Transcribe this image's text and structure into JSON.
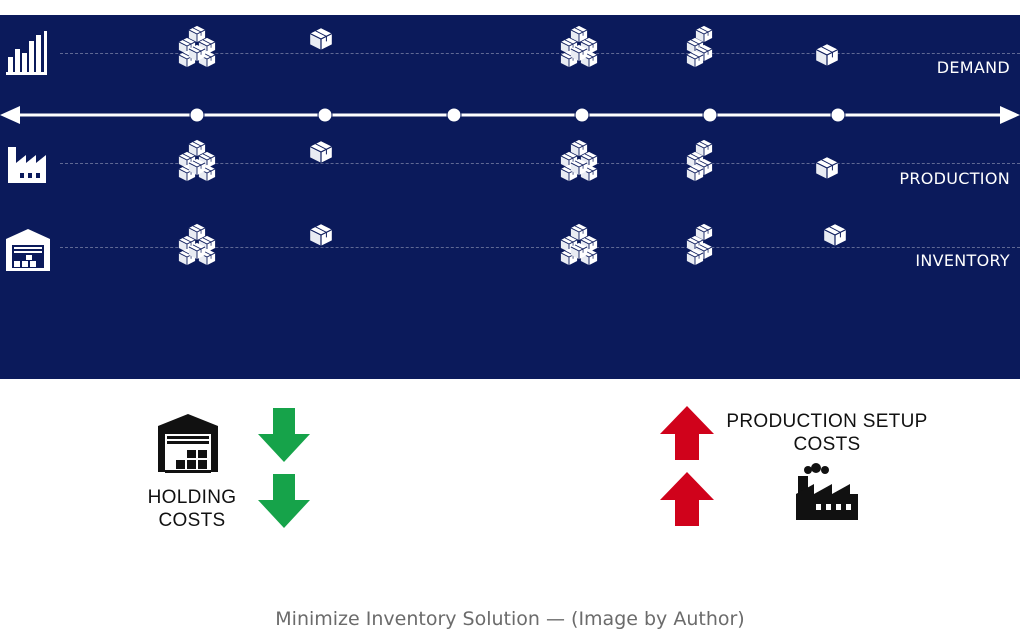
{
  "rows": {
    "demand_label": "DEMAND",
    "production_label": "PRODUCTION",
    "inventory_label": "INVENTORY"
  },
  "bottom": {
    "holding_costs_label": "HOLDING COSTS",
    "production_setup_costs_label": "PRODUCTION SETUP COSTS"
  },
  "caption": "Minimize Inventory Solution — (Image by Author)",
  "colors": {
    "panel": "#0b1a5b",
    "decrease_arrow": "#16a34a",
    "increase_arrow": "#d0021b"
  },
  "icons": [
    "bar-chart-icon",
    "factory-icon",
    "warehouse-icon",
    "box-stack-icon",
    "box-icon",
    "arrow-down-icon",
    "arrow-up-icon"
  ]
}
